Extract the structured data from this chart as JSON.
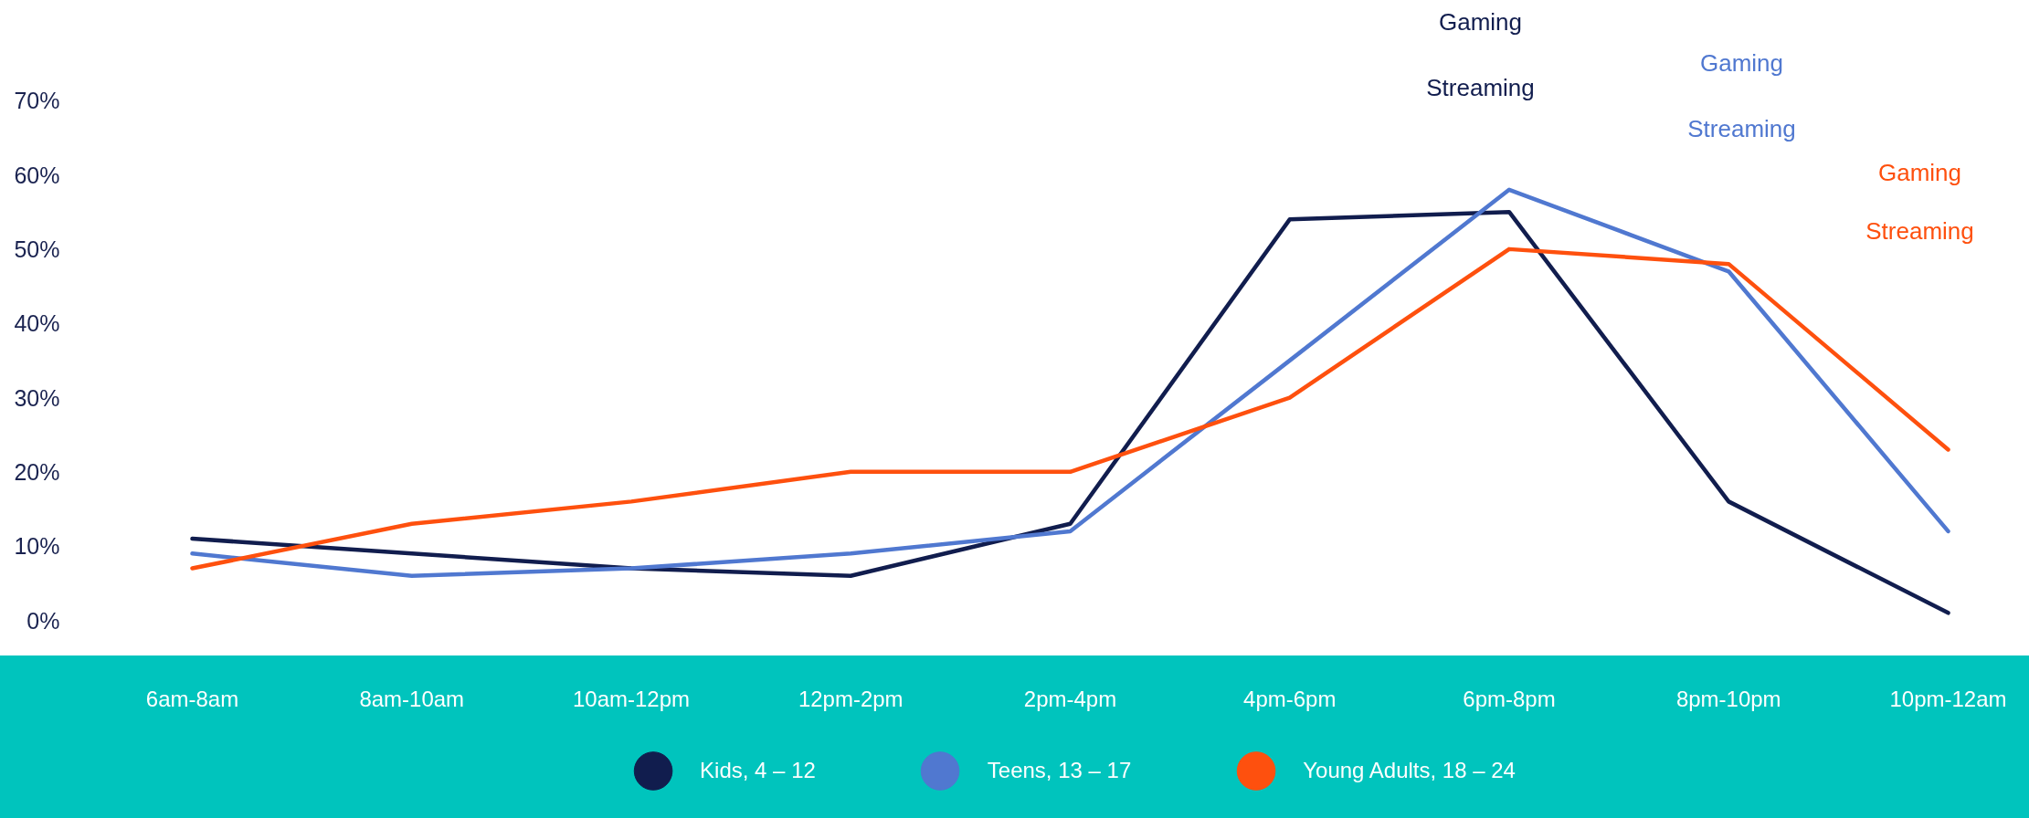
{
  "chart_data": {
    "type": "line",
    "categories": [
      "6am-8am",
      "8am-10am",
      "10am-12pm",
      "12pm-2pm",
      "2pm-4pm",
      "4pm-6pm",
      "6pm-8pm",
      "8pm-10pm",
      "10pm-12am"
    ],
    "series": [
      {
        "name": "Kids, 4 – 12",
        "color": "#111d4e",
        "values": [
          11,
          9,
          7,
          6,
          13,
          54,
          55,
          16,
          1
        ]
      },
      {
        "name": "Teens, 13 – 17",
        "color": "#5078d0",
        "values": [
          9,
          6,
          7,
          9,
          12,
          35,
          58,
          47,
          12
        ]
      },
      {
        "name": "Young Adults, 18 – 24",
        "color": "#fe500e",
        "values": [
          7,
          13,
          16,
          20,
          20,
          30,
          50,
          48,
          23
        ]
      }
    ],
    "ylim": [
      0,
      83
    ],
    "yticks": [
      {
        "value": 0,
        "label": "0%"
      },
      {
        "value": 10,
        "label": "10%"
      },
      {
        "value": 20,
        "label": "20%"
      },
      {
        "value": 30,
        "label": "30%"
      },
      {
        "value": 40,
        "label": "40%"
      },
      {
        "value": 50,
        "label": "50%"
      },
      {
        "value": 60,
        "label": "60%"
      },
      {
        "value": 70,
        "label": "70%"
      }
    ],
    "grid": false,
    "legend": "bottom",
    "annotations": [
      "Gaming",
      "Streaming",
      "Gaming",
      "Streaming",
      "Gaming",
      "Streaming"
    ]
  }
}
